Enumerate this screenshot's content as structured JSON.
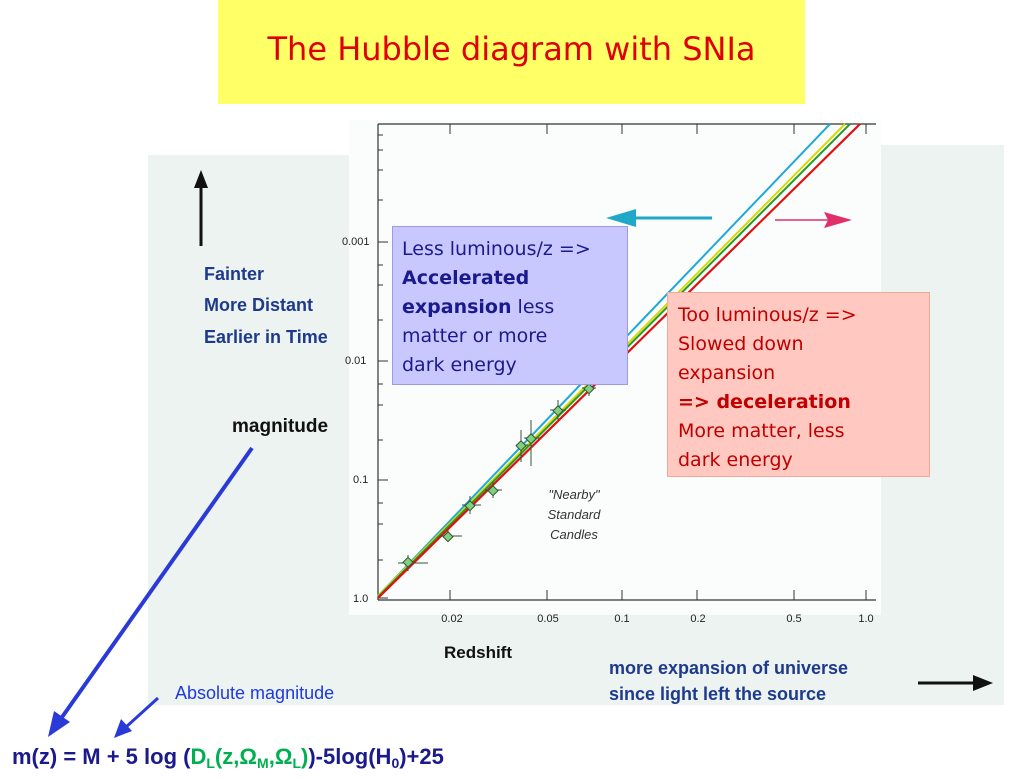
{
  "title": "The Hubble diagram with SNIa",
  "left_labels": {
    "faint": "Fainter",
    "distant": "More Distant",
    "earlier": "Earlier in Time"
  },
  "magnitude_label": "magnitude",
  "y_ticks": [
    "0.001",
    "0.01",
    "0.1",
    "1.0"
  ],
  "x_ticks": [
    "0.02",
    "0.05",
    "0.1",
    "0.2",
    "0.5",
    "1.0"
  ],
  "x_axis_label": "Redshift",
  "nearby_note": [
    "\"Nearby\"",
    "Standard",
    "Candles"
  ],
  "box_accelerated": {
    "line1": "Less luminous/z =>",
    "line2": "Accelerated",
    "line3_bold": "expansion",
    "line3_rest": " less",
    "line4": "matter or more",
    "line5": "dark energy"
  },
  "box_decelerated": {
    "line1": "Too luminous/z =>",
    "line2": "Slowed down",
    "line3": "expansion",
    "line4": "=> deceleration",
    "line5": "More matter, less",
    "line6": "dark energy"
  },
  "expansion_note": {
    "line1": "more expansion of universe",
    "line2": "since light left the source"
  },
  "absolute_magnitude_label": "Absolute magnitude",
  "formula": {
    "lhs": "m(z) = M + 5 log (",
    "dl": "D",
    "dl_sub": "L",
    "args_open": "(z,",
    "omega_m": "Ω",
    "omega_m_sub": "M",
    "comma": ",",
    "omega_l": "Ω",
    "omega_l_sub": "L",
    "args_close": ")",
    "rest": ")-5log(H",
    "h_sub": "0",
    "tail": ")+25"
  },
  "colors": {
    "title_bg": "#ffff66",
    "title_text": "#e00000",
    "accelerate_arrow": "#20a8c8",
    "decelerate_arrow": "#e0306a",
    "fit_red": "#e01010",
    "fit_yellow": "#d8d800",
    "fit_cyan": "#20a8d8",
    "pointer_blue": "#2a3ad8"
  }
}
